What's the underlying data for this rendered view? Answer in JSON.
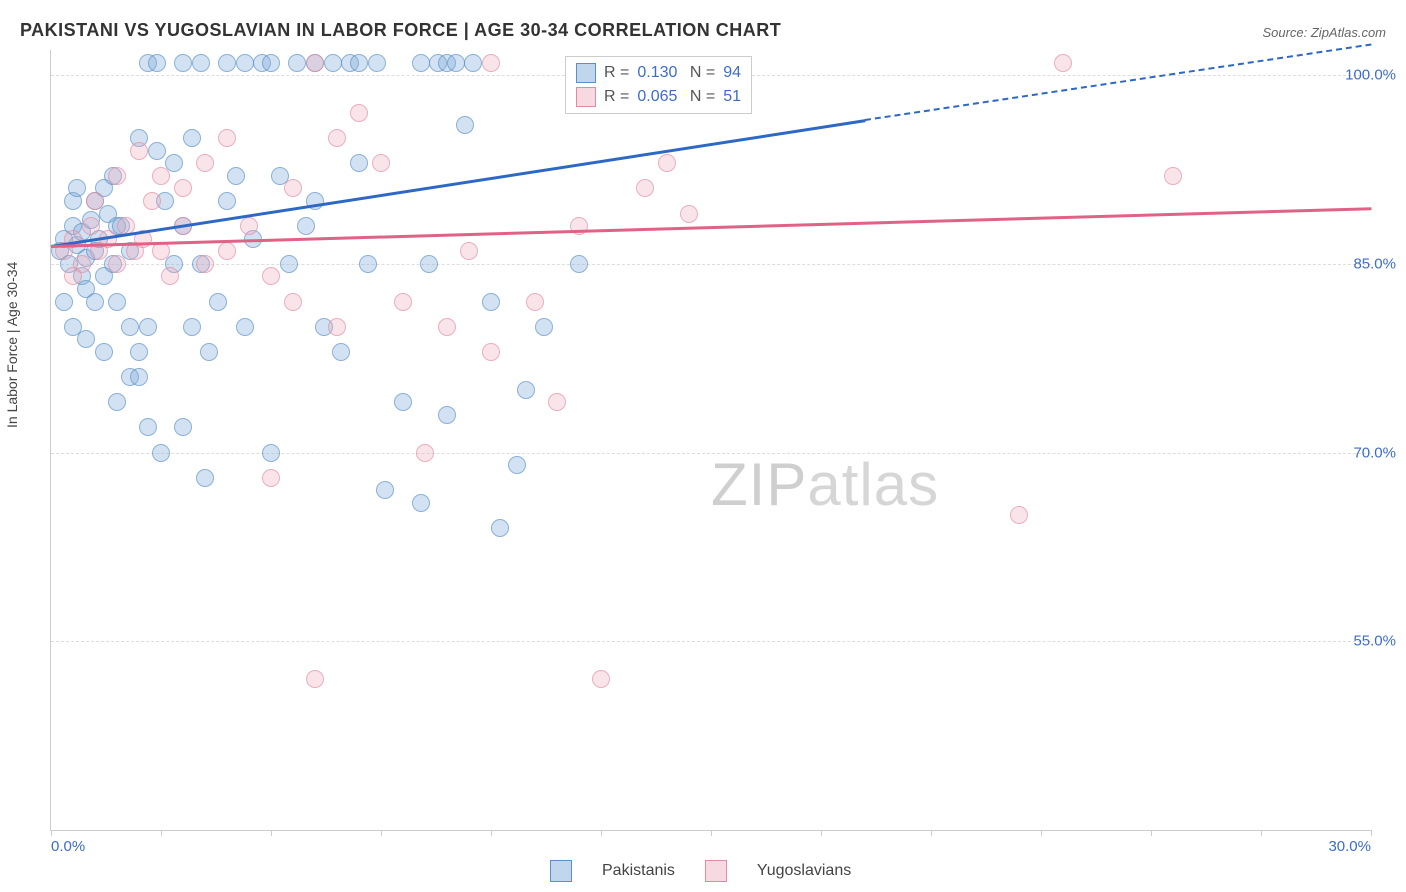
{
  "title": "PAKISTANI VS YUGOSLAVIAN IN LABOR FORCE | AGE 30-34 CORRELATION CHART",
  "source": "Source: ZipAtlas.com",
  "ylabel": "In Labor Force | Age 30-34",
  "watermark_zip": "ZIP",
  "watermark_rest": "atlas",
  "chart": {
    "type": "scatter_regression",
    "xlim": [
      0.0,
      30.0
    ],
    "ylim": [
      40.0,
      102.0
    ],
    "xtick_left": "0.0%",
    "xtick_right": "30.0%",
    "xtick_positions": [
      0,
      2.5,
      5,
      7.5,
      10,
      12.5,
      15,
      17.5,
      20,
      22.5,
      25,
      27.5,
      30
    ],
    "yticks": [
      {
        "value": 55.0,
        "label": "55.0%"
      },
      {
        "value": 70.0,
        "label": "70.0%"
      },
      {
        "value": 85.0,
        "label": "85.0%"
      },
      {
        "value": 100.0,
        "label": "100.0%"
      }
    ],
    "background_color": "#ffffff",
    "grid_color": "#dddddd",
    "axis_color": "#cccccc",
    "tick_label_color": "#3d6ccc",
    "series": [
      {
        "name": "Pakistanis",
        "color_fill": "rgba(127,173,220,0.5)",
        "color_stroke": "#5a8fc7",
        "regression_color": "#2d68c4",
        "R": "0.130",
        "N": "94",
        "reg_x1": 0.0,
        "reg_y1": 86.5,
        "reg_x2": 18.5,
        "reg_y2": 96.5,
        "dash_x2": 30.0,
        "dash_y2": 102.5,
        "points": [
          [
            0.2,
            86
          ],
          [
            0.3,
            87
          ],
          [
            0.4,
            85
          ],
          [
            0.5,
            88
          ],
          [
            0.6,
            86.5
          ],
          [
            0.7,
            87.5
          ],
          [
            0.8,
            85.5
          ],
          [
            0.9,
            88.5
          ],
          [
            1.0,
            86
          ],
          [
            1.1,
            87
          ],
          [
            1.2,
            84
          ],
          [
            1.3,
            89
          ],
          [
            1.4,
            85
          ],
          [
            1.5,
            88
          ],
          [
            0.5,
            90
          ],
          [
            0.6,
            91
          ],
          [
            0.7,
            84
          ],
          [
            0.8,
            83
          ],
          [
            1.0,
            90
          ],
          [
            1.2,
            91
          ],
          [
            1.4,
            92
          ],
          [
            1.6,
            88
          ],
          [
            1.8,
            86
          ],
          [
            2.0,
            95
          ],
          [
            2.2,
            101
          ],
          [
            2.4,
            101
          ],
          [
            2.4,
            94
          ],
          [
            2.6,
            90
          ],
          [
            2.8,
            93
          ],
          [
            3.0,
            101
          ],
          [
            3.0,
            88
          ],
          [
            3.2,
            95
          ],
          [
            3.2,
            80
          ],
          [
            3.4,
            101
          ],
          [
            3.4,
            85
          ],
          [
            3.6,
            78
          ],
          [
            3.8,
            82
          ],
          [
            4.0,
            101
          ],
          [
            4.0,
            90
          ],
          [
            4.2,
            92
          ],
          [
            4.4,
            101
          ],
          [
            4.4,
            80
          ],
          [
            4.6,
            87
          ],
          [
            4.8,
            101
          ],
          [
            5.0,
            70
          ],
          [
            5.0,
            101
          ],
          [
            5.2,
            92
          ],
          [
            5.4,
            85
          ],
          [
            5.6,
            101
          ],
          [
            5.8,
            88
          ],
          [
            6.0,
            101
          ],
          [
            6.0,
            90
          ],
          [
            6.2,
            80
          ],
          [
            6.4,
            101
          ],
          [
            6.6,
            78
          ],
          [
            6.8,
            101
          ],
          [
            7.0,
            93
          ],
          [
            7.0,
            101
          ],
          [
            7.2,
            85
          ],
          [
            7.4,
            101
          ],
          [
            7.6,
            67
          ],
          [
            8.0,
            74
          ],
          [
            8.4,
            101
          ],
          [
            8.4,
            66
          ],
          [
            8.6,
            85
          ],
          [
            8.8,
            101
          ],
          [
            9.0,
            73
          ],
          [
            9.0,
            101
          ],
          [
            9.2,
            101
          ],
          [
            9.4,
            96
          ],
          [
            9.6,
            101
          ],
          [
            10.0,
            82
          ],
          [
            10.2,
            64
          ],
          [
            10.6,
            69
          ],
          [
            10.8,
            75
          ],
          [
            11.2,
            80
          ],
          [
            12.0,
            85
          ],
          [
            1.5,
            74
          ],
          [
            1.8,
            76
          ],
          [
            2.0,
            78
          ],
          [
            2.2,
            80
          ],
          [
            2.5,
            70
          ],
          [
            2.8,
            85
          ],
          [
            3.0,
            72
          ],
          [
            3.5,
            68
          ],
          [
            0.3,
            82
          ],
          [
            0.5,
            80
          ],
          [
            0.8,
            79
          ],
          [
            1.0,
            82
          ],
          [
            1.2,
            78
          ],
          [
            1.5,
            82
          ],
          [
            1.8,
            80
          ],
          [
            2.0,
            76
          ],
          [
            2.2,
            72
          ]
        ]
      },
      {
        "name": "Yugoslavians",
        "color_fill": "rgba(237,170,189,0.45)",
        "color_stroke": "#e28ca3",
        "regression_color": "#e06287",
        "R": "0.065",
        "N": "51",
        "reg_x1": 0.0,
        "reg_y1": 86.5,
        "reg_x2": 30.0,
        "reg_y2": 89.5,
        "points": [
          [
            0.3,
            86
          ],
          [
            0.5,
            87
          ],
          [
            0.7,
            85
          ],
          [
            0.9,
            88
          ],
          [
            1.1,
            86
          ],
          [
            1.3,
            87
          ],
          [
            1.5,
            85
          ],
          [
            1.7,
            88
          ],
          [
            1.9,
            86
          ],
          [
            2.1,
            87
          ],
          [
            2.3,
            90
          ],
          [
            2.5,
            86
          ],
          [
            2.7,
            84
          ],
          [
            3.0,
            91
          ],
          [
            3.5,
            93
          ],
          [
            4.0,
            86
          ],
          [
            4.5,
            88
          ],
          [
            5.0,
            84
          ],
          [
            5.5,
            91
          ],
          [
            6.0,
            101
          ],
          [
            6.5,
            95
          ],
          [
            7.0,
            97
          ],
          [
            7.5,
            93
          ],
          [
            8.0,
            82
          ],
          [
            8.5,
            70
          ],
          [
            9.0,
            80
          ],
          [
            9.5,
            86
          ],
          [
            10.0,
            78
          ],
          [
            10.0,
            101
          ],
          [
            11.0,
            82
          ],
          [
            11.5,
            74
          ],
          [
            12.0,
            88
          ],
          [
            13.5,
            91
          ],
          [
            14.0,
            93
          ],
          [
            14.5,
            89
          ],
          [
            2.0,
            94
          ],
          [
            2.5,
            92
          ],
          [
            3.0,
            88
          ],
          [
            3.5,
            85
          ],
          [
            4.0,
            95
          ],
          [
            5.5,
            82
          ],
          [
            6.0,
            52
          ],
          [
            6.5,
            80
          ],
          [
            12.5,
            52
          ],
          [
            22.0,
            65
          ],
          [
            23.0,
            101
          ],
          [
            25.5,
            92
          ],
          [
            0.5,
            84
          ],
          [
            1.0,
            90
          ],
          [
            1.5,
            92
          ],
          [
            5.0,
            68
          ]
        ]
      }
    ]
  },
  "legend": {
    "series1": "Pakistanis",
    "series2": "Yugoslavians"
  }
}
